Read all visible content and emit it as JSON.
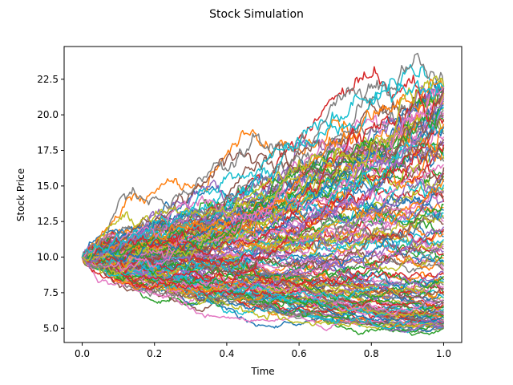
{
  "chart_data": {
    "type": "line",
    "title": "Stock Simulation",
    "xlabel": "Time",
    "ylabel": "Stock Price",
    "xlim": [
      -0.05,
      1.05
    ],
    "ylim": [
      4.0,
      24.8
    ],
    "x_ticks": [
      0.0,
      0.2,
      0.4,
      0.6,
      0.8,
      1.0
    ],
    "x_tick_labels": [
      "0.0",
      "0.2",
      "0.4",
      "0.6",
      "0.8",
      "1.0"
    ],
    "y_ticks": [
      5.0,
      7.5,
      10.0,
      12.5,
      15.0,
      17.5,
      20.0,
      22.5
    ],
    "y_tick_labels": [
      "5.0",
      "7.5",
      "10.0",
      "12.5",
      "15.0",
      "17.5",
      "20.0",
      "22.5"
    ],
    "grid": false,
    "legend": "none",
    "initial_price": 10.0,
    "time_range": [
      0.0,
      1.0
    ],
    "num_paths": 150,
    "steps_per_path": 250,
    "envelope_at_end": {
      "min": 5.0,
      "max": 22.0
    },
    "global_max_approx": 23.8,
    "colors": [
      "#1f77b4",
      "#ff7f0e",
      "#2ca02c",
      "#d62728",
      "#9467bd",
      "#8c564b",
      "#e377c2",
      "#7f7f7f",
      "#bcbd22",
      "#17becf"
    ]
  }
}
